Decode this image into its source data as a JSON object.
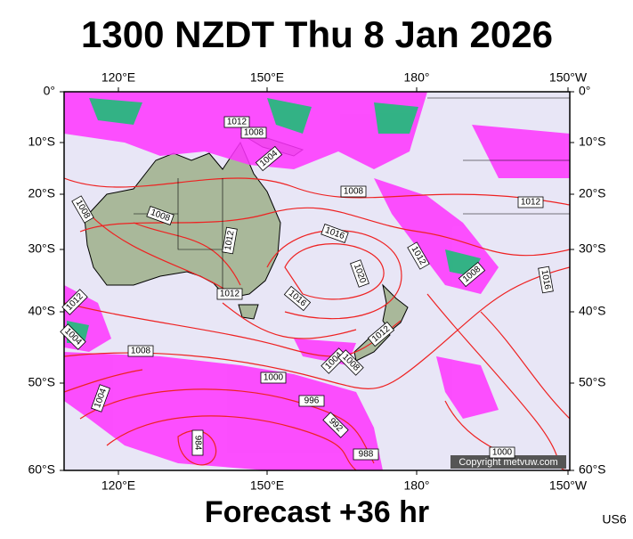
{
  "header": {
    "title": "1300 NZDT Thu 8 Jan 2026"
  },
  "footer": {
    "forecast": "Forecast +36 hr",
    "code": "US6",
    "copyright": "Copyright metvuw.com"
  },
  "axes": {
    "longitudes": [
      "120°E",
      "150°E",
      "180°",
      "150°W"
    ],
    "latitudes": [
      "0°",
      "10°S",
      "20°S",
      "30°S",
      "40°S",
      "50°S",
      "60°S"
    ]
  },
  "isobars": {
    "labels": [
      "1012",
      "1008",
      "1004",
      "1008",
      "1012",
      "1008",
      "1008",
      "1012",
      "1016",
      "1020",
      "1012",
      "1016",
      "1012",
      "1016",
      "1012",
      "1008",
      "1012",
      "1004",
      "1008",
      "1000",
      "1004",
      "1004",
      "1008",
      "996",
      "992",
      "984",
      "988",
      "1000"
    ]
  }
}
